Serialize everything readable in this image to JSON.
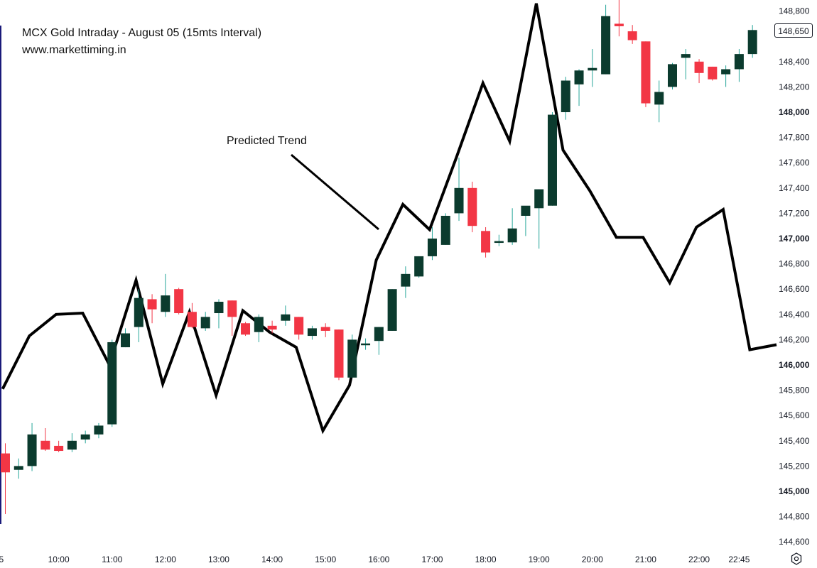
{
  "title": "MCX Gold Intraday - August 05 (15mts Interval)",
  "website": "www.markettiming.in",
  "annotation": "Predicted Trend",
  "last_price_label": "148,650",
  "colors": {
    "up": "#0b3b2e",
    "down": "#f23645",
    "prediction": "#000000",
    "axis_text": "#131722",
    "wick_up": "#26a69a"
  },
  "icons": {
    "settings": "settings-gear-icon"
  },
  "chart_data": {
    "type": "candlestick",
    "title": "MCX Gold Intraday - August 05 (15mts Interval)",
    "ylim": [
      144600,
      148900
    ],
    "y_ticks": [
      148800,
      148600,
      148400,
      148200,
      148000,
      147800,
      147600,
      147400,
      147200,
      147000,
      146800,
      146600,
      146400,
      146200,
      146000,
      145800,
      145600,
      145400,
      145200,
      145000,
      144800,
      144600
    ],
    "y_tick_labels": [
      "148,800",
      "148,600",
      "148,400",
      "148,200",
      "148,000",
      "147,800",
      "147,600",
      "147,400",
      "147,200",
      "147,000",
      "146,800",
      "146,600",
      "146,400",
      "146,200",
      "146,000",
      "145,800",
      "145,600",
      "145,400",
      "145,200",
      "145,000",
      "144,800",
      "144,600"
    ],
    "y_tick_bold": [
      145000,
      146000,
      147000,
      148000
    ],
    "x_ticks": [
      {
        "label": "5",
        "index": -0.3
      },
      {
        "label": "10:00",
        "index": 4
      },
      {
        "label": "11:00",
        "index": 8
      },
      {
        "label": "12:00",
        "index": 12
      },
      {
        "label": "13:00",
        "index": 16
      },
      {
        "label": "14:00",
        "index": 20
      },
      {
        "label": "15:00",
        "index": 24
      },
      {
        "label": "16:00",
        "index": 28
      },
      {
        "label": "17:00",
        "index": 32
      },
      {
        "label": "18:00",
        "index": 36
      },
      {
        "label": "19:00",
        "index": 40
      },
      {
        "label": "20:00",
        "index": 44
      },
      {
        "label": "21:00",
        "index": 48
      },
      {
        "label": "22:00",
        "index": 52
      },
      {
        "label": "22:45",
        "index": 55
      }
    ],
    "candles": [
      {
        "o": 145300,
        "h": 145380,
        "l": 144820,
        "c": 145150
      },
      {
        "o": 145170,
        "h": 145260,
        "l": 145100,
        "c": 145200
      },
      {
        "o": 145200,
        "h": 145540,
        "l": 145160,
        "c": 145450
      },
      {
        "o": 145400,
        "h": 145500,
        "l": 145320,
        "c": 145330
      },
      {
        "o": 145360,
        "h": 145400,
        "l": 145310,
        "c": 145320
      },
      {
        "o": 145330,
        "h": 145460,
        "l": 145310,
        "c": 145400
      },
      {
        "o": 145410,
        "h": 145480,
        "l": 145380,
        "c": 145450
      },
      {
        "o": 145450,
        "h": 145540,
        "l": 145420,
        "c": 145520
      },
      {
        "o": 145530,
        "h": 146200,
        "l": 145510,
        "c": 146180
      },
      {
        "o": 146140,
        "h": 146290,
        "l": 146140,
        "c": 146250
      },
      {
        "o": 146300,
        "h": 146600,
        "l": 146180,
        "c": 146530
      },
      {
        "o": 146520,
        "h": 146560,
        "l": 146330,
        "c": 146440
      },
      {
        "o": 146420,
        "h": 146720,
        "l": 146380,
        "c": 146550
      },
      {
        "o": 146600,
        "h": 146610,
        "l": 146400,
        "c": 146410
      },
      {
        "o": 146420,
        "h": 146490,
        "l": 146290,
        "c": 146300
      },
      {
        "o": 146290,
        "h": 146420,
        "l": 146270,
        "c": 146380
      },
      {
        "o": 146410,
        "h": 146520,
        "l": 146290,
        "c": 146500
      },
      {
        "o": 146510,
        "h": 146510,
        "l": 146230,
        "c": 146380
      },
      {
        "o": 146330,
        "h": 146340,
        "l": 146230,
        "c": 146240
      },
      {
        "o": 146260,
        "h": 146400,
        "l": 146180,
        "c": 146380
      },
      {
        "o": 146310,
        "h": 146350,
        "l": 146250,
        "c": 146280
      },
      {
        "o": 146350,
        "h": 146470,
        "l": 146310,
        "c": 146400
      },
      {
        "o": 146380,
        "h": 146380,
        "l": 146200,
        "c": 146240
      },
      {
        "o": 146230,
        "h": 146310,
        "l": 146200,
        "c": 146290
      },
      {
        "o": 146300,
        "h": 146330,
        "l": 146220,
        "c": 146270
      },
      {
        "o": 146280,
        "h": 146280,
        "l": 145880,
        "c": 145900
      },
      {
        "o": 145900,
        "h": 146240,
        "l": 145900,
        "c": 146200
      },
      {
        "o": 146170,
        "h": 146210,
        "l": 146120,
        "c": 146170
      },
      {
        "o": 146190,
        "h": 146300,
        "l": 146080,
        "c": 146300
      },
      {
        "o": 146270,
        "h": 146600,
        "l": 146270,
        "c": 146600
      },
      {
        "o": 146620,
        "h": 146780,
        "l": 146530,
        "c": 146720
      },
      {
        "o": 146700,
        "h": 146860,
        "l": 146690,
        "c": 146860
      },
      {
        "o": 146860,
        "h": 147090,
        "l": 146830,
        "c": 147000
      },
      {
        "o": 146950,
        "h": 147200,
        "l": 146950,
        "c": 147180
      },
      {
        "o": 147200,
        "h": 147640,
        "l": 147140,
        "c": 147400
      },
      {
        "o": 147400,
        "h": 147450,
        "l": 147050,
        "c": 147100
      },
      {
        "o": 147060,
        "h": 147090,
        "l": 146850,
        "c": 146890
      },
      {
        "o": 146970,
        "h": 147030,
        "l": 146940,
        "c": 146980
      },
      {
        "o": 146970,
        "h": 147240,
        "l": 146950,
        "c": 147080
      },
      {
        "o": 147180,
        "h": 147250,
        "l": 147020,
        "c": 147260
      },
      {
        "o": 147240,
        "h": 147390,
        "l": 146920,
        "c": 147390
      },
      {
        "o": 147260,
        "h": 148000,
        "l": 147260,
        "c": 147980
      },
      {
        "o": 148000,
        "h": 148280,
        "l": 147940,
        "c": 148250
      },
      {
        "o": 148220,
        "h": 148340,
        "l": 148050,
        "c": 148330
      },
      {
        "o": 148330,
        "h": 148500,
        "l": 148200,
        "c": 148350
      },
      {
        "o": 148300,
        "h": 148850,
        "l": 148300,
        "c": 148760
      },
      {
        "o": 148700,
        "h": 148920,
        "l": 148600,
        "c": 148680
      },
      {
        "o": 148640,
        "h": 148690,
        "l": 148540,
        "c": 148570
      },
      {
        "o": 148560,
        "h": 148560,
        "l": 148040,
        "c": 148070
      },
      {
        "o": 148060,
        "h": 148250,
        "l": 147920,
        "c": 148160
      },
      {
        "o": 148200,
        "h": 148390,
        "l": 148180,
        "c": 148380
      },
      {
        "o": 148430,
        "h": 148500,
        "l": 148260,
        "c": 148460
      },
      {
        "o": 148400,
        "h": 148420,
        "l": 148230,
        "c": 148310
      },
      {
        "o": 148360,
        "h": 148360,
        "l": 148250,
        "c": 148260
      },
      {
        "o": 148300,
        "h": 148370,
        "l": 148200,
        "c": 148340
      },
      {
        "o": 148340,
        "h": 148500,
        "l": 148240,
        "c": 148460
      },
      {
        "o": 148460,
        "h": 148690,
        "l": 148430,
        "c": 148650
      }
    ],
    "prediction_line": {
      "name": "Predicted Trend",
      "points": [
        [
          -0.2,
          145810
        ],
        [
          1.8,
          146230
        ],
        [
          3.8,
          146400
        ],
        [
          5.8,
          146410
        ],
        [
          7.8,
          146000
        ],
        [
          9.8,
          146670
        ],
        [
          11.8,
          145850
        ],
        [
          13.8,
          146420
        ],
        [
          15.8,
          145760
        ],
        [
          17.8,
          146430
        ],
        [
          19.8,
          146260
        ],
        [
          21.8,
          146140
        ],
        [
          23.8,
          145480
        ],
        [
          25.8,
          145840
        ],
        [
          27.8,
          146830
        ],
        [
          29.8,
          147270
        ],
        [
          31.8,
          147070
        ],
        [
          33.8,
          147640
        ],
        [
          35.8,
          148230
        ],
        [
          37.8,
          147770
        ],
        [
          39.8,
          148860
        ],
        [
          41.8,
          147700
        ],
        [
          43.8,
          147380
        ],
        [
          45.8,
          147010
        ],
        [
          47.8,
          147010
        ],
        [
          49.8,
          146650
        ],
        [
          51.8,
          147090
        ],
        [
          53.8,
          147230
        ],
        [
          55.8,
          146120
        ],
        [
          57.8,
          146160
        ]
      ]
    }
  }
}
